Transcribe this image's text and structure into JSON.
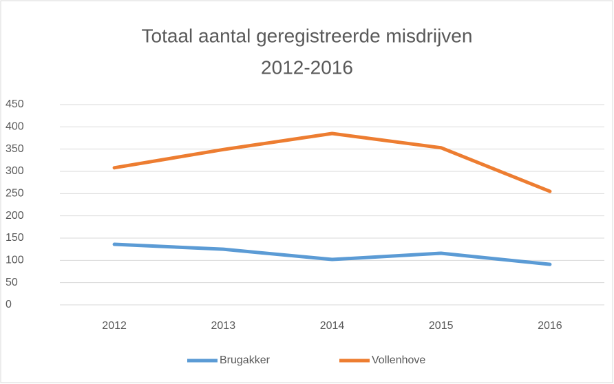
{
  "chart_data": {
    "type": "line",
    "title": [
      "Totaal aantal geregistreerde misdrijven",
      "2012-2016"
    ],
    "categories": [
      "2012",
      "2013",
      "2014",
      "2015",
      "2016"
    ],
    "series": [
      {
        "name": "Brugakker",
        "color": "#5b9bd5",
        "values": [
          136,
          125,
          102,
          116,
          91
        ]
      },
      {
        "name": "Vollenhove",
        "color": "#ed7d31",
        "values": [
          308,
          349,
          385,
          353,
          255
        ]
      }
    ],
    "ylim": [
      0,
      450
    ],
    "yticks": [
      0,
      50,
      100,
      150,
      200,
      250,
      300,
      350,
      400,
      450
    ],
    "grid": true,
    "legend": "bottom"
  }
}
